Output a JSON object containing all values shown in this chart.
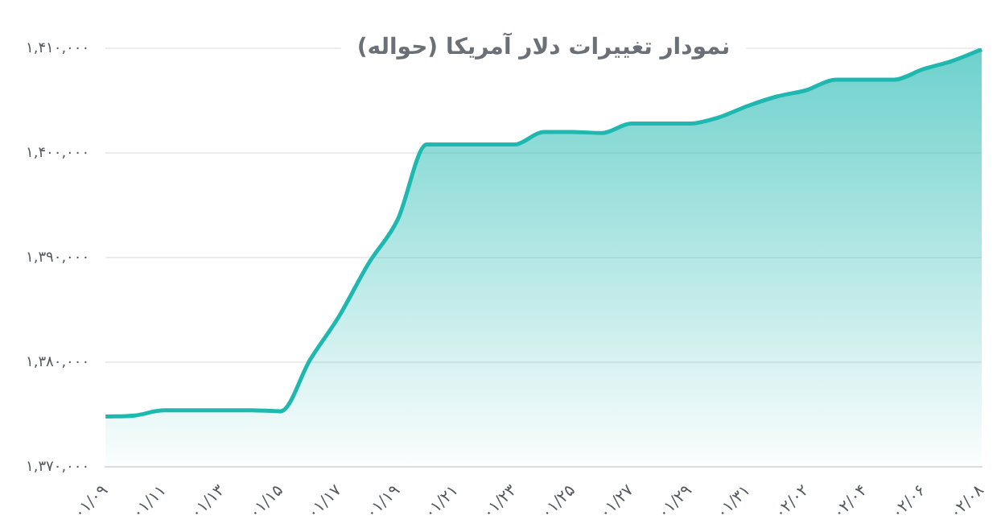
{
  "chart_data": {
    "type": "area",
    "title": "نمودار تغییرات دلار آمریکا (حواله)",
    "categories": [
      "۰۱/۰۹",
      null,
      "۰۱/۱۱",
      null,
      "۰۱/۱۳",
      null,
      "۰۱/۱۵",
      null,
      "۰۱/۱۷",
      null,
      "۰۱/۱۹",
      null,
      "۰۱/۲۱",
      null,
      "۰۱/۲۳",
      null,
      "۰۱/۲۵",
      null,
      "۰۱/۲۷",
      null,
      "۰۱/۲۹",
      null,
      "۰۱/۳۱",
      null,
      "۰۲/۰۲",
      null,
      "۰۲/۰۴",
      null,
      "۰۲/۰۶",
      null,
      "۰۲/۰۸"
    ],
    "series": [
      {
        "color": "#1fb8b1",
        "values": [
          1374800,
          1374900,
          1375400,
          1375400,
          1375400,
          1375400,
          1375300,
          1380200,
          1384400,
          1389400,
          1393600,
          1400800,
          1400800,
          1400800,
          1400800,
          1402000,
          1402000,
          1401900,
          1402800,
          1402800,
          1402800,
          1403400,
          1404500,
          1405400,
          1406000,
          1407000,
          1407000,
          1407000,
          1408000,
          1408800,
          1409900
        ]
      }
    ],
    "ylim": [
      1370000,
      1410000
    ],
    "yticks": [
      {
        "value": 1370000,
        "label": "۱,۳۷۰,۰۰۰"
      },
      {
        "value": 1380000,
        "label": "۱,۳۸۰,۰۰۰"
      },
      {
        "value": 1390000,
        "label": "۱,۳۹۰,۰۰۰"
      },
      {
        "value": 1400000,
        "label": "۱,۴۰۰,۰۰۰"
      },
      {
        "value": 1410000,
        "label": "۱,۴۱۰,۰۰۰"
      }
    ],
    "grid": "y",
    "legend": false,
    "marker": "none",
    "line_style": "solid"
  }
}
